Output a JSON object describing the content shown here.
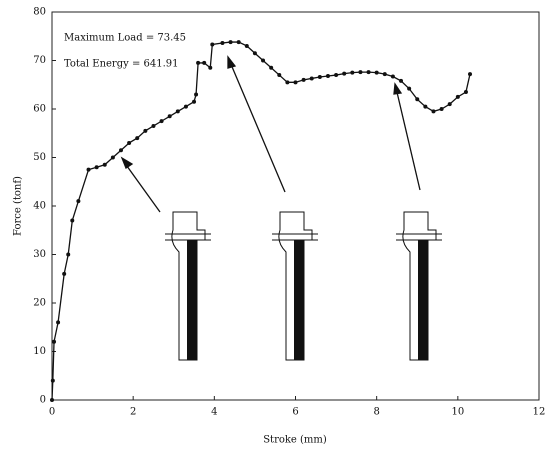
{
  "chart_data": {
    "type": "line",
    "x_label": "Stroke (mm)",
    "y_label": "Force (tonf)",
    "annotations": [
      "Maximum Load = 73.45",
      "Total Energy = 641.91"
    ],
    "xlim": [
      0,
      12
    ],
    "xticks": [
      0,
      2,
      4,
      6,
      8,
      10,
      12
    ],
    "ylim": [
      0,
      80
    ],
    "yticks": [
      0,
      10,
      20,
      30,
      40,
      50,
      60,
      70,
      80
    ],
    "series": [
      {
        "color": "#111111",
        "x": [
          0,
          0.02,
          0.05,
          0.15,
          0.3,
          0.4,
          0.5,
          0.65,
          0.9,
          1.1,
          1.3,
          1.5,
          1.7,
          1.9,
          2.1,
          2.3,
          2.5,
          2.7,
          2.9,
          3.1,
          3.3,
          3.5,
          3.55,
          3.6,
          3.75,
          3.9,
          3.95,
          4.2,
          4.4,
          4.6,
          4.8,
          5.0,
          5.2,
          5.4,
          5.6,
          5.8,
          6.0,
          6.2,
          6.4,
          6.6,
          6.8,
          7.0,
          7.2,
          7.4,
          7.6,
          7.8,
          8.0,
          8.2,
          8.4,
          8.6,
          8.8,
          9.0,
          9.2,
          9.4,
          9.6,
          9.8,
          10.0,
          10.2,
          10.3
        ],
        "values": [
          0,
          4,
          12,
          16,
          26,
          30,
          37,
          41,
          47.5,
          48,
          48.5,
          50,
          51.5,
          53,
          54,
          55.5,
          56.5,
          57.5,
          58.5,
          59.5,
          60.5,
          61.5,
          63,
          69.5,
          69.5,
          68.5,
          73.3,
          73.6,
          73.8,
          73.8,
          73,
          71.5,
          70,
          68.5,
          67,
          65.5,
          65.5,
          66,
          66.3,
          66.6,
          66.8,
          67,
          67.3,
          67.5,
          67.6,
          67.6,
          67.5,
          67.2,
          66.7,
          65.8,
          64.2,
          62,
          60.5,
          59.5,
          60,
          61,
          62.5,
          63.5,
          67.2
        ]
      }
    ]
  }
}
